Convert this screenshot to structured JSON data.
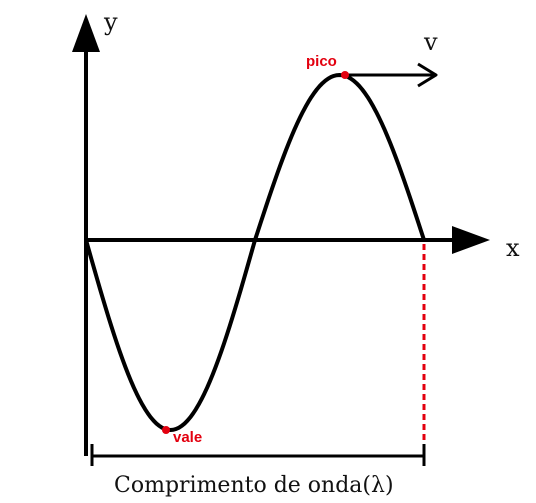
{
  "labels": {
    "y_axis": "y",
    "x_axis": "x",
    "velocity": "v",
    "peak": "pico",
    "trough": "vale",
    "wavelength": "Comprimento de onda(λ)"
  },
  "colors": {
    "line": "#000000",
    "accent": "#e3000f"
  }
}
